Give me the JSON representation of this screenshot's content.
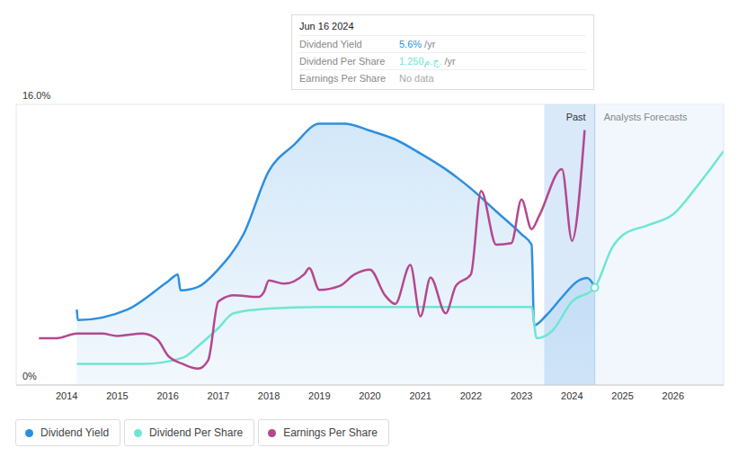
{
  "chart_data": {
    "type": "line",
    "xlim": [
      2013,
      2027
    ],
    "xticks": [
      2014,
      2015,
      2016,
      2017,
      2018,
      2019,
      2020,
      2021,
      2022,
      2023,
      2024,
      2025,
      2026
    ],
    "ylim": [
      0,
      16
    ],
    "yticks": [
      {
        "value": 0,
        "label": "0%"
      },
      {
        "value": 16,
        "label": "16.0%"
      }
    ],
    "y2lim": [
      0,
      3.6
    ],
    "grid": true,
    "series": [
      {
        "name": "Dividend Yield",
        "type": "area",
        "color": "#2d8fe0",
        "x": [
          2014.2,
          2014.22,
          2015.2,
          2016.0,
          2016.2,
          2016.25,
          2016.6,
          2017.0,
          2017.5,
          2018.0,
          2018.5,
          2019.0,
          2019.5,
          2020.0,
          2020.5,
          2021.0,
          2021.5,
          2022.0,
          2022.5,
          2023.0,
          2023.2,
          2023.25,
          2023.5,
          2023.8,
          2024.1,
          2024.3,
          2024.45
        ],
        "values": [
          4.3,
          3.7,
          4.3,
          5.9,
          6.3,
          5.4,
          5.6,
          6.6,
          8.6,
          12.2,
          13.7,
          14.9,
          14.9,
          14.5,
          14.0,
          13.2,
          12.3,
          11.2,
          9.9,
          8.6,
          8.0,
          3.4,
          4.0,
          5.0,
          5.9,
          6.1,
          5.6
        ]
      },
      {
        "name": "Dividend Per Share",
        "type": "line",
        "color": "#6ee6d3",
        "axis": "y2",
        "x": [
          2014.2,
          2015.5,
          2016.3,
          2016.6,
          2017.0,
          2017.3,
          2018.0,
          2019.0,
          2023.2,
          2023.3,
          2023.6,
          2024.0,
          2024.45,
          2024.8,
          2025.0,
          2025.5,
          2026.0,
          2026.5,
          2027.0
        ],
        "values": [
          0.27,
          0.27,
          0.35,
          0.5,
          0.73,
          0.92,
          0.98,
          1.0,
          1.0,
          0.6,
          0.69,
          1.07,
          1.25,
          1.77,
          1.92,
          2.05,
          2.19,
          2.57,
          3.0
        ]
      },
      {
        "name": "Earnings Per Share",
        "type": "line",
        "color": "#b5478f",
        "axis": "y2",
        "x": [
          2013.45,
          2013.8,
          2014.2,
          2014.7,
          2015.0,
          2015.5,
          2015.8,
          2016.0,
          2016.3,
          2016.6,
          2016.8,
          2017.0,
          2017.3,
          2017.8,
          2017.9,
          2018.0,
          2018.3,
          2018.7,
          2018.8,
          2019.0,
          2019.4,
          2019.7,
          2020.0,
          2020.3,
          2020.5,
          2020.8,
          2021.0,
          2021.2,
          2021.5,
          2021.7,
          2022.0,
          2022.2,
          2022.5,
          2022.8,
          2023.0,
          2023.2,
          2023.35,
          2023.8,
          2024.0,
          2024.25
        ],
        "values": [
          0.6,
          0.6,
          0.66,
          0.66,
          0.63,
          0.66,
          0.58,
          0.38,
          0.27,
          0.21,
          0.32,
          1.07,
          1.15,
          1.13,
          1.19,
          1.34,
          1.3,
          1.42,
          1.5,
          1.22,
          1.27,
          1.42,
          1.48,
          1.15,
          1.04,
          1.54,
          0.88,
          1.38,
          0.92,
          1.27,
          1.42,
          2.49,
          1.8,
          1.82,
          2.38,
          2.0,
          2.17,
          2.77,
          1.85,
          3.27
        ]
      }
    ],
    "annotations": [
      {
        "text": "Past",
        "x": [
          2023.45,
          2024.45
        ]
      },
      {
        "text": "Analysts Forecasts",
        "x": [
          2024.45,
          2027
        ]
      }
    ],
    "tooltip": {
      "title": "Jun 16 2024",
      "x": 2024.45,
      "rows": [
        {
          "label": "Dividend Yield",
          "value": "5.6%",
          "unit": "/yr"
        },
        {
          "label": "Dividend Per Share",
          "value": "1.250ج.م.",
          "unit": "/yr"
        },
        {
          "label": "Earnings Per Share",
          "value": "No data"
        }
      ]
    }
  }
}
